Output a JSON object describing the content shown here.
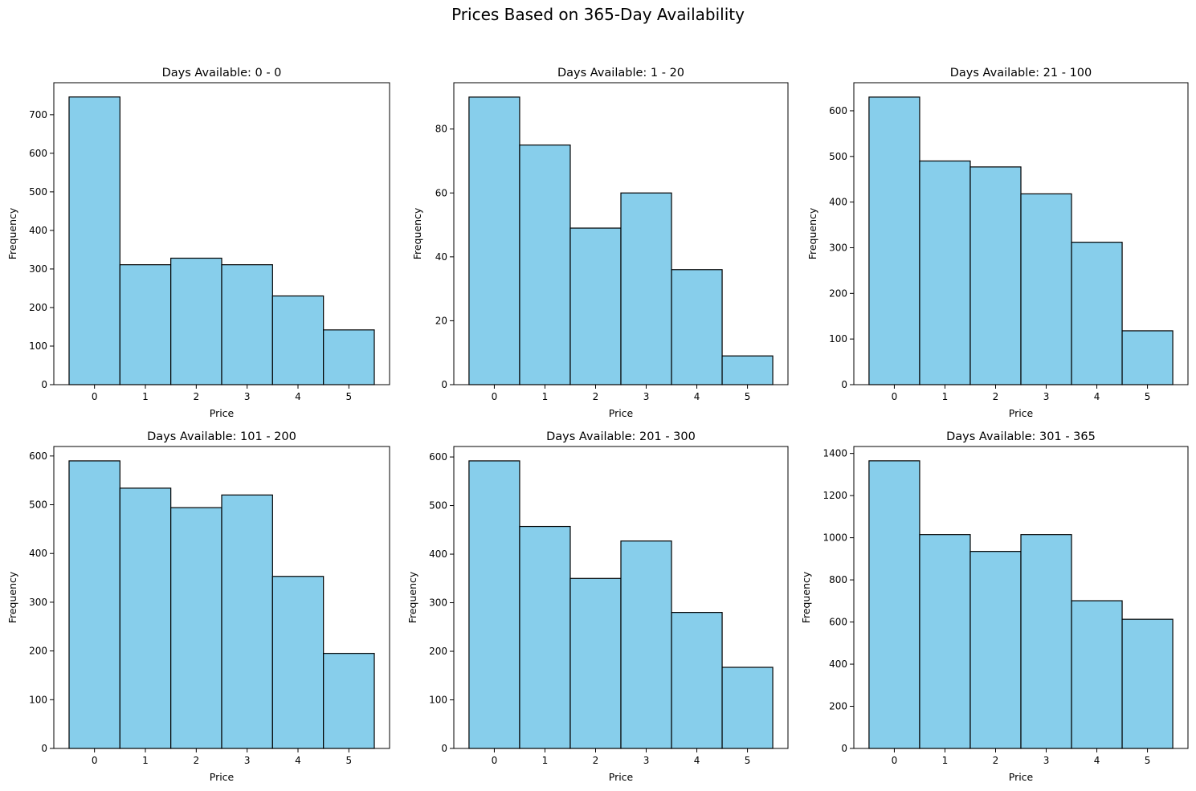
{
  "figure": {
    "title": "Prices Based on 365-Day Availability"
  },
  "style": {
    "bar_fill": "#87CEEB",
    "bar_edge": "#000000",
    "axis_color": "#000000"
  },
  "chart_data": [
    {
      "type": "bar",
      "title": "Days Available: 0 - 0",
      "xlabel": "Price",
      "ylabel": "Frequency",
      "categories": [
        0,
        1,
        2,
        3,
        4,
        5
      ],
      "values": [
        746,
        311,
        328,
        311,
        230,
        142
      ],
      "xlim": [
        -0.8,
        5.8
      ],
      "ylim": [
        0,
        783
      ],
      "yticks": [
        0,
        100,
        200,
        300,
        400,
        500,
        600,
        700
      ],
      "xticks": [
        0,
        1,
        2,
        3,
        4,
        5
      ],
      "grid": false
    },
    {
      "type": "bar",
      "title": "Days Available: 1 - 20",
      "xlabel": "Price",
      "ylabel": "Frequency",
      "categories": [
        0,
        1,
        2,
        3,
        4,
        5
      ],
      "values": [
        90,
        75,
        49,
        60,
        36,
        9
      ],
      "xlim": [
        -0.8,
        5.8
      ],
      "ylim": [
        0,
        94.5
      ],
      "yticks": [
        0,
        20,
        40,
        60,
        80
      ],
      "xticks": [
        0,
        1,
        2,
        3,
        4,
        5
      ],
      "grid": false
    },
    {
      "type": "bar",
      "title": "Days Available: 21 - 100",
      "xlabel": "Price",
      "ylabel": "Frequency",
      "categories": [
        0,
        1,
        2,
        3,
        4,
        5
      ],
      "values": [
        630,
        490,
        477,
        418,
        312,
        118
      ],
      "xlim": [
        -0.8,
        5.8
      ],
      "ylim": [
        0,
        661.5
      ],
      "yticks": [
        0,
        100,
        200,
        300,
        400,
        500,
        600
      ],
      "xticks": [
        0,
        1,
        2,
        3,
        4,
        5
      ],
      "grid": false
    },
    {
      "type": "bar",
      "title": "Days Available: 101 - 200",
      "xlabel": "Price",
      "ylabel": "Frequency",
      "categories": [
        0,
        1,
        2,
        3,
        4,
        5
      ],
      "values": [
        590,
        534,
        494,
        520,
        353,
        195
      ],
      "xlim": [
        -0.8,
        5.8
      ],
      "ylim": [
        0,
        619.5
      ],
      "yticks": [
        0,
        100,
        200,
        300,
        400,
        500,
        600
      ],
      "xticks": [
        0,
        1,
        2,
        3,
        4,
        5
      ],
      "grid": false
    },
    {
      "type": "bar",
      "title": "Days Available: 201 - 300",
      "xlabel": "Price",
      "ylabel": "Frequency",
      "categories": [
        0,
        1,
        2,
        3,
        4,
        5
      ],
      "values": [
        592,
        457,
        350,
        427,
        280,
        167
      ],
      "xlim": [
        -0.8,
        5.8
      ],
      "ylim": [
        0,
        621.6
      ],
      "yticks": [
        0,
        100,
        200,
        300,
        400,
        500,
        600
      ],
      "xticks": [
        0,
        1,
        2,
        3,
        4,
        5
      ],
      "grid": false
    },
    {
      "type": "bar",
      "title": "Days Available: 301 - 365",
      "xlabel": "Price",
      "ylabel": "Frequency",
      "categories": [
        0,
        1,
        2,
        3,
        4,
        5
      ],
      "values": [
        1365,
        1015,
        935,
        1015,
        701,
        613
      ],
      "xlim": [
        -0.8,
        5.8
      ],
      "ylim": [
        0,
        1433
      ],
      "yticks": [
        0,
        200,
        400,
        600,
        800,
        1000,
        1200,
        1400
      ],
      "xticks": [
        0,
        1,
        2,
        3,
        4,
        5
      ],
      "grid": false
    }
  ]
}
